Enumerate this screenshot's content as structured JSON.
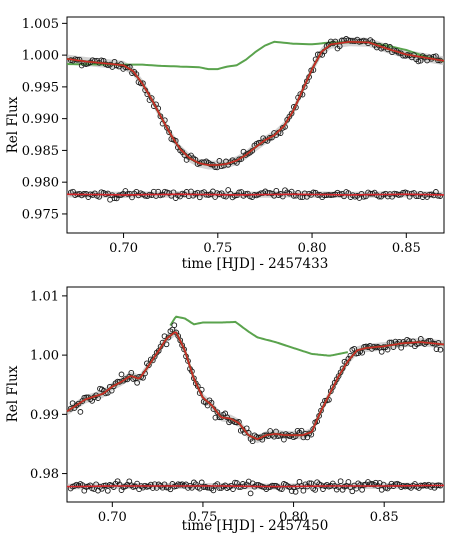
{
  "chart_data": [
    {
      "type": "scatter",
      "title": "",
      "xlabel": "time [HJD] - 2457433",
      "ylabel": "Rel Flux",
      "xlim": [
        0.67,
        0.87
      ],
      "ylim": [
        0.972,
        1.006
      ],
      "x_ticks": [
        0.7,
        0.75,
        0.8,
        0.85
      ],
      "x_tick_labels": [
        "0.70",
        "0.75",
        "0.80",
        "0.85"
      ],
      "y_ticks": [
        0.975,
        0.98,
        0.985,
        0.99,
        0.995,
        1.0,
        1.005
      ],
      "y_tick_labels": [
        "0.975",
        "0.980",
        "0.985",
        "0.990",
        "0.995",
        "1.000",
        "1.005"
      ],
      "grid": false,
      "colors": {
        "data": "#1a1a1a",
        "model": "#7a4a1e",
        "red": "#d6272b",
        "band": "#b0b0b0",
        "green": "#5aa34d"
      },
      "series": [
        {
          "role": "light_curve_fit",
          "x": [
            0.67,
            0.68,
            0.69,
            0.7,
            0.705,
            0.71,
            0.715,
            0.72,
            0.725,
            0.73,
            0.735,
            0.74,
            0.745,
            0.75,
            0.755,
            0.76,
            0.765,
            0.77,
            0.775,
            0.78,
            0.785,
            0.79,
            0.795,
            0.8,
            0.805,
            0.81,
            0.82,
            0.83,
            0.84,
            0.85,
            0.86,
            0.87
          ],
          "y": [
            0.9994,
            0.999,
            0.9987,
            0.9984,
            0.9975,
            0.9955,
            0.993,
            0.9902,
            0.9875,
            0.9852,
            0.9838,
            0.983,
            0.9827,
            0.9827,
            0.9829,
            0.9834,
            0.9843,
            0.9855,
            0.9866,
            0.9874,
            0.9888,
            0.9912,
            0.9945,
            0.9978,
            1.0005,
            1.0017,
            1.0021,
            1.002,
            1.001,
            1.0001,
            0.9996,
            0.9991
          ]
        },
        {
          "role": "residuals_offset",
          "x": [
            0.67,
            0.7,
            0.73,
            0.76,
            0.79,
            0.82,
            0.85,
            0.87
          ],
          "y": [
            0.9781,
            0.978,
            0.9781,
            0.978,
            0.9781,
            0.978,
            0.9781,
            0.978
          ]
        },
        {
          "role": "systematics_model",
          "x": [
            0.67,
            0.69,
            0.71,
            0.72,
            0.73,
            0.74,
            0.745,
            0.75,
            0.755,
            0.76,
            0.765,
            0.77,
            0.775,
            0.78,
            0.79,
            0.8,
            0.81,
            0.82,
            0.83,
            0.84,
            0.85,
            0.86,
            0.87
          ],
          "y": [
            0.9986,
            0.9985,
            0.9985,
            0.9983,
            0.9982,
            0.9981,
            0.9978,
            0.9978,
            0.9982,
            0.9984,
            0.9993,
            1.0005,
            1.0015,
            1.0021,
            1.0018,
            1.0017,
            1.002,
            1.002,
            1.002,
            1.0015,
            1.0008,
            0.9998,
            0.999
          ]
        }
      ],
      "scatter_noise": {
        "light_curve": 0.00035,
        "residuals": 0.0003,
        "n_points": 170
      }
    },
    {
      "type": "scatter",
      "title": "",
      "xlabel": "time [HJD] - 2457450",
      "ylabel": "Rel Flux",
      "xlim": [
        0.675,
        0.883
      ],
      "ylim": [
        0.9752,
        1.0115
      ],
      "x_ticks": [
        0.7,
        0.75,
        0.8,
        0.85
      ],
      "x_tick_labels": [
        "0.70",
        "0.75",
        "0.80",
        "0.85"
      ],
      "y_ticks": [
        0.98,
        0.99,
        1.0,
        1.01
      ],
      "y_tick_labels": [
        "0.98",
        "0.99",
        "1.00",
        "1.01"
      ],
      "grid": false,
      "colors": {
        "data": "#1a1a1a",
        "model": "#7a4a1e",
        "red": "#d6272b",
        "band": "#b0b0b0",
        "green": "#5aa34d"
      },
      "series": [
        {
          "role": "light_curve_fit",
          "x": [
            0.675,
            0.685,
            0.695,
            0.7,
            0.705,
            0.71,
            0.715,
            0.72,
            0.725,
            0.73,
            0.735,
            0.74,
            0.745,
            0.75,
            0.755,
            0.76,
            0.765,
            0.77,
            0.775,
            0.78,
            0.785,
            0.79,
            0.795,
            0.8,
            0.805,
            0.81,
            0.815,
            0.82,
            0.825,
            0.83,
            0.835,
            0.84,
            0.85,
            0.86,
            0.87,
            0.883
          ],
          "y": [
            0.9905,
            0.9925,
            0.9935,
            0.9947,
            0.9955,
            0.9965,
            0.996,
            0.9982,
            1.0005,
            1.0028,
            1.004,
            1.0008,
            0.996,
            0.9928,
            0.9915,
            0.9895,
            0.9893,
            0.9885,
            0.9865,
            0.9858,
            0.9865,
            0.9867,
            0.9865,
            0.9865,
            0.9865,
            0.987,
            0.9905,
            0.9935,
            0.9965,
            0.999,
            1.0008,
            1.0012,
            1.0015,
            1.002,
            1.0022,
            1.0018
          ]
        },
        {
          "role": "residuals_offset",
          "x": [
            0.675,
            0.7,
            0.73,
            0.76,
            0.79,
            0.82,
            0.85,
            0.883
          ],
          "y": [
            0.9778,
            0.9779,
            0.9779,
            0.9779,
            0.9778,
            0.9779,
            0.9779,
            0.978
          ]
        },
        {
          "role": "systematics_model",
          "x": [
            0.732,
            0.735,
            0.74,
            0.745,
            0.75,
            0.76,
            0.768,
            0.775,
            0.78,
            0.79,
            0.8,
            0.81,
            0.82,
            0.83
          ],
          "y": [
            1.005,
            1.0065,
            1.0062,
            1.0052,
            1.0055,
            1.0055,
            1.0056,
            1.004,
            1.003,
            1.0022,
            1.0012,
            1.0002,
            0.9999,
            1.0005
          ]
        }
      ],
      "scatter_noise": {
        "light_curve": 0.00045,
        "residuals": 0.00035,
        "n_points": 190
      }
    }
  ]
}
